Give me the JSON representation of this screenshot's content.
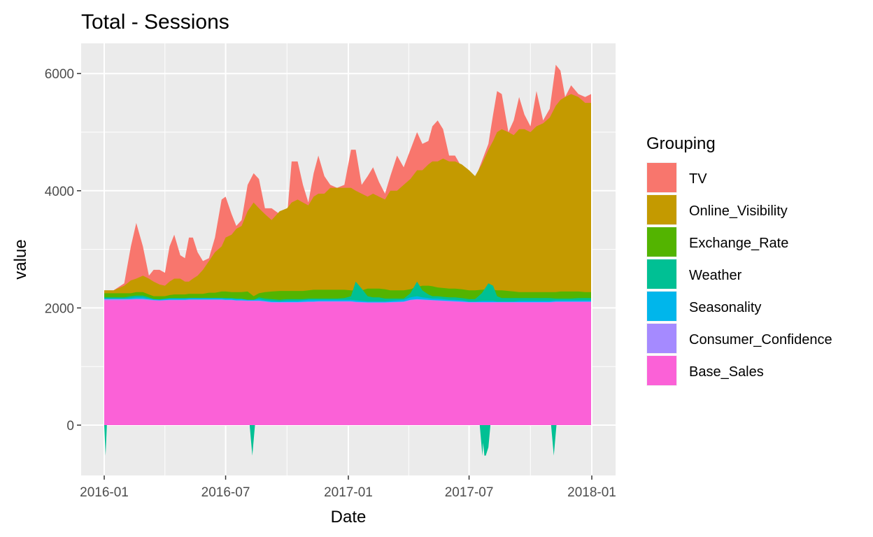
{
  "chart_data": {
    "type": "area",
    "title": "Total - Sessions",
    "xlabel": "Date",
    "ylabel": "value",
    "x_range": [
      "2016-01",
      "2018-01"
    ],
    "y_range": [
      -850,
      6550
    ],
    "x_ticks": [
      "2016-01",
      "2016-07",
      "2017-01",
      "2017-07",
      "2018-01"
    ],
    "y_ticks": [
      0,
      2000,
      4000,
      6000
    ],
    "grid": true,
    "legend_placement": "right",
    "legend_title": "Grouping",
    "series_order": [
      "TV",
      "Online_Visibility",
      "Exchange_Rate",
      "Weather",
      "Seasonality",
      "Consumer_Confidence",
      "Base_Sales"
    ],
    "colors": {
      "TV": "#F8766D",
      "Online_Visibility": "#C49A00",
      "Exchange_Rate": "#53B400",
      "Weather": "#00C094",
      "Seasonality": "#00B6EB",
      "Consumer_Confidence": "#A58AFF",
      "Base_Sales": "#FB61D7"
    },
    "stack_tops": {
      "x": [
        "2016-01-01",
        "2016-01-15",
        "2016-01-31",
        "2016-02-10",
        "2016-02-18",
        "2016-02-28",
        "2016-03-08",
        "2016-03-15",
        "2016-03-24",
        "2016-04-01",
        "2016-04-08",
        "2016-04-15",
        "2016-04-24",
        "2016-05-01",
        "2016-05-07",
        "2016-05-13",
        "2016-05-20",
        "2016-05-28",
        "2016-06-06",
        "2016-06-15",
        "2016-06-25",
        "2016-07-01",
        "2016-07-10",
        "2016-07-17",
        "2016-07-25",
        "2016-08-03",
        "2016-08-12",
        "2016-08-20",
        "2016-08-29",
        "2016-09-08",
        "2016-09-20",
        "2016-10-01",
        "2016-10-08",
        "2016-10-17",
        "2016-10-25",
        "2016-11-02",
        "2016-11-10",
        "2016-11-17",
        "2016-11-26",
        "2016-12-05",
        "2016-12-15",
        "2016-12-26",
        "2017-01-05",
        "2017-01-12",
        "2017-01-21",
        "2017-01-30",
        "2017-02-07",
        "2017-02-16",
        "2017-02-25",
        "2017-03-05",
        "2017-03-15",
        "2017-03-25",
        "2017-04-04",
        "2017-04-14",
        "2017-04-22",
        "2017-05-01",
        "2017-05-07",
        "2017-05-15",
        "2017-05-23",
        "2017-06-01",
        "2017-06-10",
        "2017-06-20",
        "2017-07-01",
        "2017-07-10",
        "2017-07-20",
        "2017-07-30",
        "2017-08-06",
        "2017-08-12",
        "2017-08-19",
        "2017-08-29",
        "2017-09-06",
        "2017-09-14",
        "2017-09-22",
        "2017-10-01",
        "2017-10-10",
        "2017-10-20",
        "2017-10-30",
        "2017-11-08",
        "2017-11-15",
        "2017-11-22",
        "2017-12-01",
        "2017-12-12",
        "2017-12-22",
        "2017-12-31"
      ],
      "TV": [
        2300,
        2300,
        2420,
        3050,
        3450,
        3050,
        2550,
        2650,
        2650,
        2600,
        3050,
        3250,
        2900,
        2850,
        3200,
        3200,
        2950,
        2800,
        2850,
        3200,
        3850,
        3900,
        3600,
        3400,
        3500,
        4100,
        4300,
        4200,
        3700,
        3700,
        3600,
        3550,
        4500,
        4500,
        4100,
        3800,
        4300,
        4600,
        4250,
        4100,
        4050,
        4100,
        4700,
        4700,
        4100,
        4250,
        4400,
        4150,
        3950,
        4250,
        4600,
        4400,
        4700,
        5000,
        4800,
        4850,
        5100,
        5200,
        5050,
        4600,
        4600,
        4400,
        4300,
        4200,
        4500,
        4800,
        5300,
        5700,
        5650,
        5000,
        5200,
        5600,
        5300,
        5100,
        5700,
        5200,
        5400,
        6150,
        6050,
        5600,
        5800,
        5650,
        5600,
        5650
      ],
      "Online_Visibility": [
        2300,
        2300,
        2380,
        2470,
        2500,
        2550,
        2500,
        2450,
        2400,
        2380,
        2450,
        2500,
        2500,
        2450,
        2450,
        2500,
        2550,
        2650,
        2800,
        2950,
        3050,
        3200,
        3250,
        3350,
        3400,
        3650,
        3800,
        3700,
        3600,
        3500,
        3650,
        3700,
        3800,
        3850,
        3800,
        3750,
        3900,
        3950,
        3950,
        4050,
        4050,
        4050,
        4050,
        4000,
        3950,
        3900,
        3950,
        3900,
        3850,
        4000,
        4000,
        4100,
        4200,
        4350,
        4350,
        4450,
        4500,
        4500,
        4550,
        4500,
        4500,
        4450,
        4350,
        4250,
        4450,
        4700,
        4850,
        5000,
        5050,
        5000,
        4950,
        5050,
        5050,
        5000,
        5100,
        5150,
        5250,
        5450,
        5550,
        5600,
        5650,
        5600,
        5500,
        5500
      ],
      "Exchange_Rate": [
        2250,
        2250,
        2250,
        2250,
        2270,
        2270,
        2230,
        2200,
        2200,
        2200,
        2220,
        2230,
        2230,
        2230,
        2240,
        2240,
        2240,
        2240,
        2260,
        2260,
        2280,
        2280,
        2270,
        2270,
        2270,
        2280,
        2200,
        2250,
        2270,
        2280,
        2290,
        2290,
        2290,
        2290,
        2290,
        2300,
        2310,
        2310,
        2310,
        2310,
        2310,
        2310,
        2300,
        2300,
        2300,
        2330,
        2330,
        2330,
        2320,
        2300,
        2300,
        2300,
        2320,
        2360,
        2380,
        2380,
        2370,
        2350,
        2340,
        2330,
        2330,
        2320,
        2300,
        2300,
        2310,
        2320,
        2310,
        2300,
        2300,
        2290,
        2280,
        2270,
        2270,
        2270,
        2270,
        2270,
        2270,
        2270,
        2280,
        2280,
        2280,
        2280,
        2270,
        2270
      ],
      "Weather": [
        2180,
        2180,
        2180,
        2200,
        2210,
        2210,
        2180,
        2150,
        2150,
        2160,
        2170,
        2170,
        2170,
        2170,
        2170,
        2170,
        2170,
        2170,
        2170,
        2170,
        2170,
        2170,
        2170,
        2160,
        2160,
        2140,
        2140,
        2180,
        2160,
        2150,
        2140,
        2150,
        2150,
        2150,
        2150,
        2160,
        2160,
        2160,
        2160,
        2160,
        2160,
        2170,
        2200,
        2450,
        2330,
        2200,
        2180,
        2180,
        2160,
        2160,
        2160,
        2160,
        2250,
        2450,
        2300,
        2230,
        2200,
        2200,
        2190,
        2180,
        2180,
        2170,
        2150,
        2150,
        2250,
        2420,
        2380,
        2200,
        2170,
        2170,
        2170,
        2170,
        2170,
        2170,
        2170,
        2170,
        2170,
        2160,
        2160,
        2160,
        2160,
        2170,
        2170,
        2170
      ],
      "Seasonality": [
        2160,
        2160,
        2160,
        2170,
        2180,
        2180,
        2160,
        2150,
        2140,
        2150,
        2160,
        2160,
        2160,
        2160,
        2170,
        2170,
        2170,
        2170,
        2170,
        2170,
        2170,
        2160,
        2160,
        2150,
        2150,
        2140,
        2140,
        2150,
        2130,
        2120,
        2110,
        2120,
        2120,
        2120,
        2130,
        2140,
        2140,
        2140,
        2140,
        2140,
        2140,
        2140,
        2140,
        2130,
        2120,
        2110,
        2110,
        2110,
        2110,
        2120,
        2130,
        2140,
        2180,
        2200,
        2180,
        2170,
        2160,
        2160,
        2150,
        2140,
        2140,
        2130,
        2110,
        2110,
        2120,
        2120,
        2120,
        2110,
        2110,
        2110,
        2110,
        2120,
        2120,
        2120,
        2120,
        2120,
        2120,
        2130,
        2130,
        2130,
        2130,
        2130,
        2130,
        2130
      ],
      "Consumer_Confidence": [
        2150,
        2150,
        2150,
        2150,
        2155,
        2155,
        2145,
        2135,
        2130,
        2135,
        2140,
        2140,
        2140,
        2140,
        2145,
        2145,
        2145,
        2145,
        2145,
        2145,
        2145,
        2140,
        2140,
        2130,
        2130,
        2125,
        2125,
        2125,
        2115,
        2100,
        2100,
        2100,
        2100,
        2100,
        2105,
        2110,
        2110,
        2115,
        2115,
        2115,
        2115,
        2115,
        2115,
        2105,
        2100,
        2095,
        2095,
        2095,
        2095,
        2100,
        2105,
        2110,
        2140,
        2150,
        2145,
        2140,
        2135,
        2130,
        2125,
        2120,
        2115,
        2110,
        2100,
        2100,
        2100,
        2100,
        2100,
        2100,
        2100,
        2100,
        2100,
        2100,
        2100,
        2100,
        2100,
        2100,
        2100,
        2110,
        2110,
        2110,
        2110,
        2110,
        2110,
        2110
      ],
      "Base_Sales": [
        2130,
        2130,
        2130,
        2140,
        2145,
        2140,
        2130,
        2125,
        2120,
        2125,
        2130,
        2130,
        2130,
        2130,
        2135,
        2135,
        2135,
        2135,
        2135,
        2135,
        2135,
        2130,
        2130,
        2120,
        2120,
        2115,
        2115,
        2115,
        2105,
        2090,
        2085,
        2090,
        2090,
        2090,
        2095,
        2100,
        2100,
        2105,
        2105,
        2105,
        2105,
        2105,
        2105,
        2095,
        2090,
        2085,
        2085,
        2085,
        2085,
        2090,
        2095,
        2100,
        2130,
        2140,
        2135,
        2130,
        2125,
        2120,
        2115,
        2110,
        2105,
        2100,
        2090,
        2090,
        2090,
        2090,
        2090,
        2090,
        2090,
        2090,
        2090,
        2090,
        2090,
        2090,
        2090,
        2090,
        2090,
        2100,
        2100,
        2100,
        2100,
        2100,
        2100,
        2100
      ]
    },
    "negative_weather": [
      {
        "x": [
          "2016-01-01",
          "2016-01-03",
          "2016-01-05"
        ],
        "values": [
          0,
          -520,
          0
        ]
      },
      {
        "x": [
          "2016-08-06",
          "2016-08-10",
          "2016-08-14"
        ],
        "values": [
          0,
          -520,
          0
        ]
      },
      {
        "x": [
          "2017-07-17",
          "2017-07-21",
          "2017-07-22",
          "2017-07-24",
          "2017-07-26",
          "2017-07-30",
          "2017-08-02"
        ],
        "values": [
          0,
          -520,
          -300,
          -520,
          -520,
          -380,
          0
        ]
      },
      {
        "x": [
          "2017-11-01",
          "2017-11-05",
          "2017-11-09"
        ],
        "values": [
          0,
          -520,
          0
        ]
      }
    ]
  }
}
